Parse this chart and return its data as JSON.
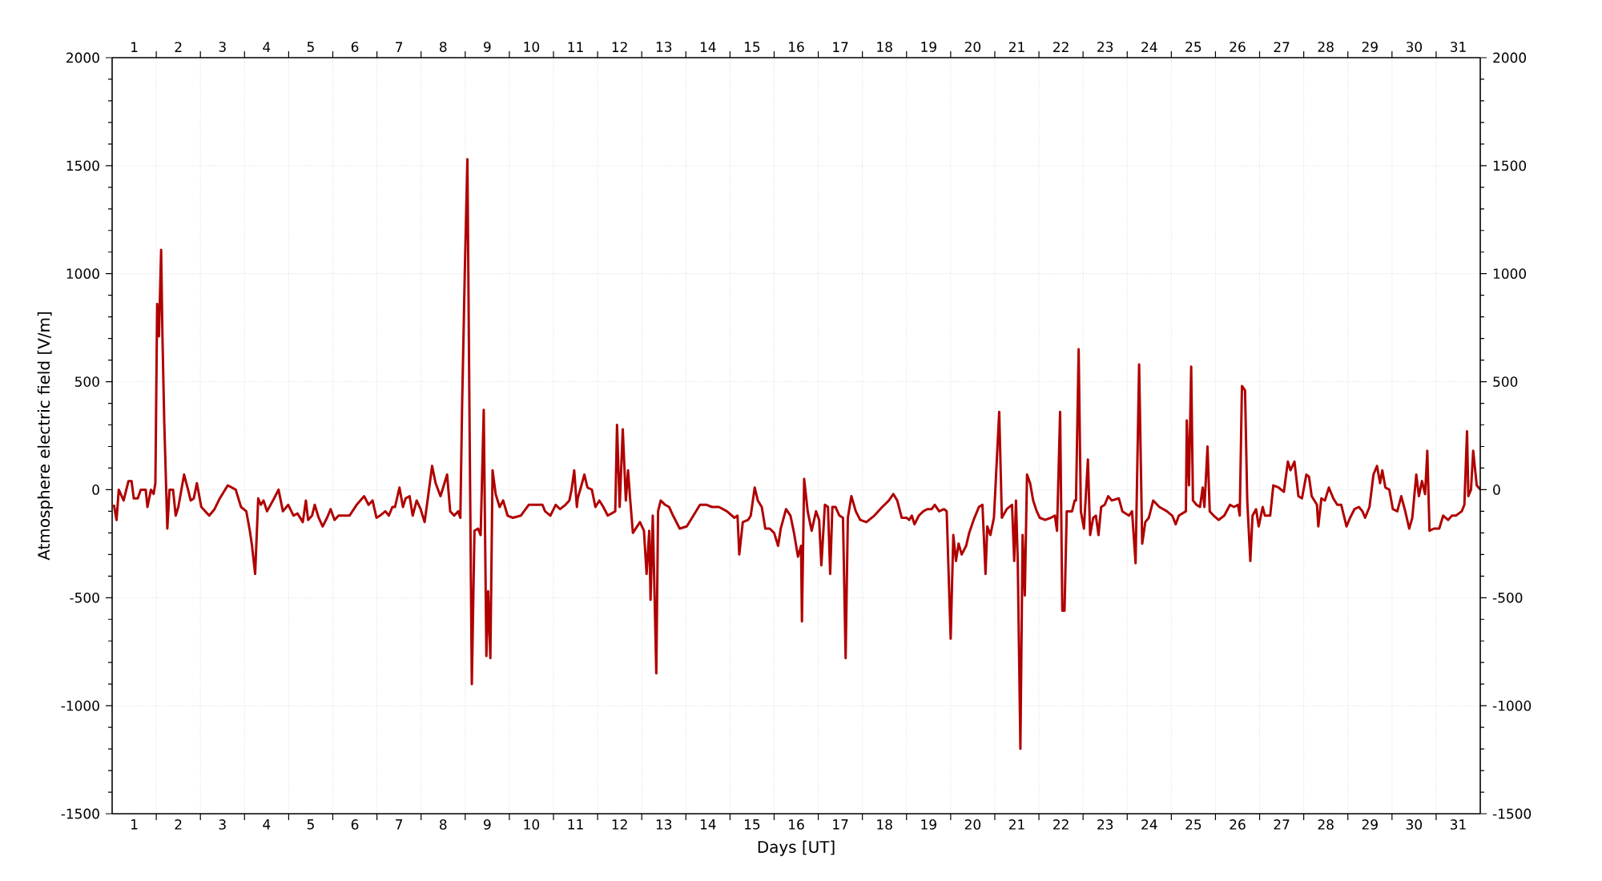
{
  "chart_data": {
    "type": "line",
    "xlabel": "Days [UT]",
    "ylabel": "Atmosphere electric field [V/m]",
    "xlim": [
      1,
      32
    ],
    "xticks": [
      {
        "value": 2,
        "label": null
      },
      {
        "value": 3,
        "label": null
      },
      {
        "value": 4,
        "label": null
      },
      {
        "value": 5,
        "label": null
      },
      {
        "value": 6,
        "label": null
      },
      {
        "value": 7,
        "label": null
      },
      {
        "value": 8,
        "label": null
      },
      {
        "value": 9,
        "label": null
      },
      {
        "value": 10,
        "label": null
      },
      {
        "value": 11,
        "label": null
      },
      {
        "value": 12,
        "label": null
      },
      {
        "value": 13,
        "label": null
      },
      {
        "value": 14,
        "label": null
      },
      {
        "value": 15,
        "label": null
      },
      {
        "value": 16,
        "label": null
      },
      {
        "value": 17,
        "label": null
      },
      {
        "value": 18,
        "label": null
      },
      {
        "value": 19,
        "label": null
      },
      {
        "value": 20,
        "label": null
      },
      {
        "value": 21,
        "label": null
      },
      {
        "value": 22,
        "label": null
      },
      {
        "value": 23,
        "label": null
      },
      {
        "value": 24,
        "label": null
      },
      {
        "value": 25,
        "label": null
      },
      {
        "value": 26,
        "label": null
      },
      {
        "value": 27,
        "label": null
      },
      {
        "value": 28,
        "label": null
      },
      {
        "value": 29,
        "label": null
      },
      {
        "value": 30,
        "label": null
      },
      {
        "value": 31,
        "label": null
      },
      {
        "value": 1.5,
        "label": "1"
      },
      {
        "value": 2.5,
        "label": "2"
      },
      {
        "value": 3.5,
        "label": "3"
      },
      {
        "value": 4.5,
        "label": "4"
      },
      {
        "value": 5.5,
        "label": "5"
      },
      {
        "value": 6.5,
        "label": "6"
      },
      {
        "value": 7.5,
        "label": "7"
      },
      {
        "value": 8.5,
        "label": "8"
      },
      {
        "value": 9.5,
        "label": "9"
      },
      {
        "value": 10.5,
        "label": "10"
      },
      {
        "value": 11.5,
        "label": "11"
      },
      {
        "value": 12.5,
        "label": "12"
      },
      {
        "value": 13.5,
        "label": "13"
      },
      {
        "value": 14.5,
        "label": "14"
      },
      {
        "value": 15.5,
        "label": "15"
      },
      {
        "value": 16.5,
        "label": "16"
      },
      {
        "value": 17.5,
        "label": "17"
      },
      {
        "value": 18.5,
        "label": "18"
      },
      {
        "value": 19.5,
        "label": "19"
      },
      {
        "value": 20.5,
        "label": "20"
      },
      {
        "value": 21.5,
        "label": "21"
      },
      {
        "value": 22.5,
        "label": "22"
      },
      {
        "value": 23.5,
        "label": "23"
      },
      {
        "value": 24.5,
        "label": "24"
      },
      {
        "value": 25.5,
        "label": "25"
      },
      {
        "value": 26.5,
        "label": "26"
      },
      {
        "value": 27.5,
        "label": "27"
      },
      {
        "value": 28.5,
        "label": "28"
      },
      {
        "value": 29.5,
        "label": "29"
      },
      {
        "value": 30.5,
        "label": "30"
      },
      {
        "value": 31.5,
        "label": "31"
      }
    ],
    "x2lim": [
      1,
      32
    ],
    "x2ticks": [
      {
        "value": 2,
        "label": null
      },
      {
        "value": 3,
        "label": null
      },
      {
        "value": 4,
        "label": null
      },
      {
        "value": 5,
        "label": null
      },
      {
        "value": 6,
        "label": null
      },
      {
        "value": 7,
        "label": null
      },
      {
        "value": 8,
        "label": null
      },
      {
        "value": 9,
        "label": null
      },
      {
        "value": 10,
        "label": null
      },
      {
        "value": 11,
        "label": null
      },
      {
        "value": 12,
        "label": null
      },
      {
        "value": 13,
        "label": null
      },
      {
        "value": 14,
        "label": null
      },
      {
        "value": 15,
        "label": null
      },
      {
        "value": 16,
        "label": null
      },
      {
        "value": 17,
        "label": null
      },
      {
        "value": 18,
        "label": null
      },
      {
        "value": 19,
        "label": null
      },
      {
        "value": 20,
        "label": null
      },
      {
        "value": 21,
        "label": null
      },
      {
        "value": 22,
        "label": null
      },
      {
        "value": 23,
        "label": null
      },
      {
        "value": 24,
        "label": null
      },
      {
        "value": 25,
        "label": null
      },
      {
        "value": 26,
        "label": null
      },
      {
        "value": 27,
        "label": null
      },
      {
        "value": 28,
        "label": null
      },
      {
        "value": 29,
        "label": null
      },
      {
        "value": 30,
        "label": null
      },
      {
        "value": 31,
        "label": null
      },
      {
        "value": 1.5,
        "label": "1"
      },
      {
        "value": 2.5,
        "label": "2"
      },
      {
        "value": 3.5,
        "label": "3"
      },
      {
        "value": 4.5,
        "label": "4"
      },
      {
        "value": 5.5,
        "label": "5"
      },
      {
        "value": 6.5,
        "label": "6"
      },
      {
        "value": 7.5,
        "label": "7"
      },
      {
        "value": 8.5,
        "label": "8"
      },
      {
        "value": 9.5,
        "label": "9"
      },
      {
        "value": 10.5,
        "label": "10"
      },
      {
        "value": 11.5,
        "label": "11"
      },
      {
        "value": 12.5,
        "label": "12"
      },
      {
        "value": 13.5,
        "label": "13"
      },
      {
        "value": 14.5,
        "label": "14"
      },
      {
        "value": 15.5,
        "label": "15"
      },
      {
        "value": 16.5,
        "label": "16"
      },
      {
        "value": 17.5,
        "label": "17"
      },
      {
        "value": 18.5,
        "label": "18"
      },
      {
        "value": 19.5,
        "label": "19"
      },
      {
        "value": 20.5,
        "label": "20"
      },
      {
        "value": 21.5,
        "label": "21"
      },
      {
        "value": 22.5,
        "label": "22"
      },
      {
        "value": 23.5,
        "label": "23"
      },
      {
        "value": 24.5,
        "label": "24"
      },
      {
        "value": 25.5,
        "label": "25"
      },
      {
        "value": 26.5,
        "label": "26"
      },
      {
        "value": 27.5,
        "label": "27"
      },
      {
        "value": 28.5,
        "label": "28"
      },
      {
        "value": 29.5,
        "label": "29"
      },
      {
        "value": 30.5,
        "label": "30"
      },
      {
        "value": 31.5,
        "label": "31"
      }
    ],
    "ylim": [
      -1500,
      2000
    ],
    "yticks": [
      -1500,
      -1000,
      -500,
      0,
      500,
      1000,
      1500,
      2000,
      {
        "value": -1400,
        "label": null
      },
      {
        "value": -1300,
        "label": null
      },
      {
        "value": -1200,
        "label": null
      },
      {
        "value": -1100,
        "label": null
      },
      {
        "value": -900,
        "label": null
      },
      {
        "value": -800,
        "label": null
      },
      {
        "value": -700,
        "label": null
      },
      {
        "value": -600,
        "label": null
      },
      {
        "value": -400,
        "label": null
      },
      {
        "value": -300,
        "label": null
      },
      {
        "value": -200,
        "label": null
      },
      {
        "value": -100,
        "label": null
      },
      {
        "value": 100,
        "label": null
      },
      {
        "value": 200,
        "label": null
      },
      {
        "value": 300,
        "label": null
      },
      {
        "value": 400,
        "label": null
      },
      {
        "value": 600,
        "label": null
      },
      {
        "value": 700,
        "label": null
      },
      {
        "value": 800,
        "label": null
      },
      {
        "value": 900,
        "label": null
      },
      {
        "value": 1100,
        "label": null
      },
      {
        "value": 1200,
        "label": null
      },
      {
        "value": 1300,
        "label": null
      },
      {
        "value": 1400,
        "label": null
      },
      {
        "value": 1600,
        "label": null
      },
      {
        "value": 1700,
        "label": null
      },
      {
        "value": 1800,
        "label": null
      },
      {
        "value": 1900,
        "label": null
      }
    ],
    "y2lim": [
      -1500,
      2000
    ],
    "y2ticks": [
      -1500,
      -1000,
      -500,
      0,
      500,
      1000,
      1500,
      2000,
      {
        "value": -1400,
        "label": null
      },
      {
        "value": -1300,
        "label": null
      },
      {
        "value": -1200,
        "label": null
      },
      {
        "value": -1100,
        "label": null
      },
      {
        "value": -900,
        "label": null
      },
      {
        "value": -800,
        "label": null
      },
      {
        "value": -700,
        "label": null
      },
      {
        "value": -600,
        "label": null
      },
      {
        "value": -400,
        "label": null
      },
      {
        "value": -300,
        "label": null
      },
      {
        "value": -200,
        "label": null
      },
      {
        "value": -100,
        "label": null
      },
      {
        "value": 100,
        "label": null
      },
      {
        "value": 200,
        "label": null
      },
      {
        "value": 300,
        "label": null
      },
      {
        "value": 400,
        "label": null
      },
      {
        "value": 600,
        "label": null
      },
      {
        "value": 700,
        "label": null
      },
      {
        "value": 800,
        "label": null
      },
      {
        "value": 900,
        "label": null
      },
      {
        "value": 1100,
        "label": null
      },
      {
        "value": 1200,
        "label": null
      },
      {
        "value": 1300,
        "label": null
      },
      {
        "value": 1400,
        "label": null
      },
      {
        "value": 1600,
        "label": null
      },
      {
        "value": 1700,
        "label": null
      },
      {
        "value": 1800,
        "label": null
      },
      {
        "value": 1900,
        "label": null
      }
    ],
    "grid": true,
    "x": [
      1.04,
      1.1,
      1.15,
      1.26,
      1.37,
      1.44,
      1.49,
      1.58,
      1.65,
      1.76,
      1.8,
      1.88,
      1.94,
      1.98,
      2.02,
      2.06,
      2.11,
      2.14,
      2.18,
      2.25,
      2.3,
      2.38,
      2.44,
      2.5,
      2.63,
      2.72,
      2.78,
      2.85,
      2.92,
      3.02,
      3.2,
      3.32,
      3.44,
      3.62,
      3.8,
      3.92,
      4.04,
      4.12,
      4.17,
      4.24,
      4.31,
      4.37,
      4.43,
      4.51,
      4.67,
      4.77,
      4.87,
      4.99,
      5.11,
      5.2,
      5.32,
      5.39,
      5.44,
      5.53,
      5.59,
      5.68,
      5.77,
      5.87,
      5.95,
      6.04,
      6.13,
      6.25,
      6.38,
      6.54,
      6.71,
      6.81,
      6.9,
      6.99,
      7.07,
      7.19,
      7.27,
      7.35,
      7.41,
      7.51,
      7.59,
      7.65,
      7.74,
      7.81,
      7.9,
      7.99,
      8.08,
      8.16,
      8.25,
      8.33,
      8.44,
      8.5,
      8.59,
      8.66,
      8.75,
      8.84,
      8.89,
      8.93,
      8.99,
      9.05,
      9.1,
      9.15,
      9.21,
      9.29,
      9.35,
      9.42,
      9.48,
      9.52,
      9.57,
      9.62,
      9.69,
      9.78,
      9.86,
      9.96,
      10.08,
      10.26,
      10.44,
      10.59,
      10.75,
      10.81,
      10.93,
      11.05,
      11.15,
      11.27,
      11.36,
      11.41,
      11.47,
      11.53,
      11.55,
      11.62,
      11.7,
      11.77,
      11.87,
      11.95,
      12.04,
      12.13,
      12.23,
      12.4,
      12.44,
      12.5,
      12.57,
      12.64,
      12.69,
      12.74,
      12.8,
      12.96,
      13.05,
      13.11,
      13.17,
      13.2,
      13.25,
      13.33,
      13.37,
      13.43,
      13.53,
      13.62,
      13.71,
      13.86,
      14.02,
      14.14,
      14.32,
      14.47,
      14.59,
      14.75,
      14.93,
      15.1,
      15.17,
      15.21,
      15.29,
      15.41,
      15.47,
      15.56,
      15.63,
      15.72,
      15.8,
      15.9,
      16.0,
      16.09,
      16.15,
      16.27,
      16.37,
      16.45,
      16.54,
      16.61,
      16.63,
      16.68,
      16.76,
      16.85,
      16.95,
      17.02,
      17.07,
      17.15,
      17.22,
      17.27,
      17.32,
      17.39,
      17.48,
      17.56,
      17.62,
      17.67,
      17.75,
      17.85,
      17.95,
      18.09,
      18.27,
      18.45,
      18.6,
      18.7,
      18.79,
      18.89,
      19.0,
      19.06,
      19.12,
      19.18,
      19.28,
      19.38,
      19.47,
      19.57,
      19.64,
      19.74,
      19.85,
      19.91,
      20.0,
      20.06,
      20.12,
      20.18,
      20.25,
      20.35,
      20.42,
      20.52,
      20.64,
      20.72,
      20.79,
      20.83,
      20.9,
      20.98,
      21.02,
      21.1,
      21.16,
      21.27,
      21.39,
      21.44,
      21.48,
      21.52,
      21.58,
      21.63,
      21.68,
      21.73,
      21.8,
      21.87,
      21.95,
      22.02,
      22.14,
      22.27,
      22.36,
      22.41,
      22.48,
      22.53,
      22.58,
      22.63,
      22.75,
      22.81,
      22.84,
      22.9,
      22.95,
      23.02,
      23.11,
      23.16,
      23.23,
      23.29,
      23.35,
      23.41,
      23.49,
      23.57,
      23.65,
      23.81,
      23.89,
      24.04,
      24.11,
      24.19,
      24.27,
      24.34,
      24.41,
      24.49,
      24.59,
      24.73,
      24.9,
      25.02,
      25.1,
      25.17,
      25.33,
      25.35,
      25.4,
      25.45,
      25.49,
      25.57,
      25.65,
      25.71,
      25.75,
      25.82,
      25.87,
      25.96,
      26.07,
      26.2,
      26.33,
      26.42,
      26.51,
      26.55,
      26.6,
      26.67,
      26.72,
      26.79,
      26.84,
      26.92,
      26.98,
      27.07,
      27.12,
      27.24,
      27.31,
      27.43,
      27.55,
      27.64,
      27.7,
      27.79,
      27.88,
      27.96,
      28.06,
      28.12,
      28.18,
      28.3,
      28.33,
      28.4,
      28.48,
      28.57,
      28.67,
      28.76,
      28.85,
      28.97,
      29.05,
      29.15,
      29.25,
      29.33,
      29.39,
      29.49,
      29.58,
      29.66,
      29.73,
      29.78,
      29.85,
      29.94,
      30.02,
      30.12,
      30.21,
      30.3,
      30.39,
      30.46,
      30.55,
      30.61,
      30.68,
      30.75,
      30.8,
      30.85,
      30.95,
      31.07,
      31.16,
      31.27,
      31.36,
      31.45,
      31.58,
      31.64,
      31.7,
      31.73,
      31.79,
      31.84,
      31.92,
      32.0
    ],
    "series": [
      {
        "color": "#b00000",
        "values": [
          -70,
          -140,
          0,
          -50,
          40,
          40,
          -40,
          -40,
          0,
          0,
          -80,
          0,
          -20,
          30,
          860,
          710,
          1110,
          710,
          320,
          -180,
          0,
          0,
          -120,
          -80,
          70,
          0,
          -50,
          -40,
          30,
          -80,
          -120,
          -90,
          -40,
          20,
          0,
          -80,
          -100,
          -190,
          -260,
          -390,
          -40,
          -70,
          -50,
          -100,
          -40,
          0,
          -100,
          -70,
          -120,
          -110,
          -150,
          -50,
          -140,
          -120,
          -70,
          -130,
          -170,
          -130,
          -90,
          -140,
          -120,
          -120,
          -120,
          -70,
          -30,
          -70,
          -50,
          -130,
          -120,
          -100,
          -120,
          -80,
          -80,
          10,
          -80,
          -40,
          -30,
          -120,
          -50,
          -90,
          -150,
          -30,
          110,
          30,
          -30,
          10,
          70,
          -100,
          -120,
          -100,
          -130,
          390,
          1000,
          1530,
          270,
          -900,
          -190,
          -180,
          -210,
          370,
          -770,
          -470,
          -780,
          90,
          -20,
          -80,
          -50,
          -120,
          -130,
          -120,
          -70,
          -70,
          -70,
          -100,
          -120,
          -70,
          -90,
          -70,
          -50,
          0,
          90,
          -80,
          -40,
          10,
          70,
          10,
          0,
          -80,
          -50,
          -80,
          -120,
          -100,
          300,
          -80,
          280,
          -50,
          90,
          -50,
          -200,
          -150,
          -190,
          -390,
          -190,
          -510,
          -120,
          -850,
          -100,
          -50,
          -70,
          -80,
          -120,
          -180,
          -170,
          -130,
          -70,
          -70,
          -80,
          -80,
          -100,
          -130,
          -120,
          -300,
          -150,
          -140,
          -120,
          10,
          -50,
          -80,
          -180,
          -180,
          -200,
          -260,
          -180,
          -90,
          -120,
          -200,
          -310,
          -260,
          -610,
          50,
          -100,
          -190,
          -100,
          -140,
          -350,
          -70,
          -80,
          -390,
          -80,
          -80,
          -120,
          -130,
          -780,
          -130,
          -30,
          -100,
          -140,
          -150,
          -120,
          -80,
          -50,
          -20,
          -50,
          -130,
          -130,
          -140,
          -120,
          -160,
          -120,
          -100,
          -90,
          -90,
          -70,
          -100,
          -90,
          -100,
          -690,
          -210,
          -330,
          -250,
          -300,
          -260,
          -200,
          -140,
          -80,
          -70,
          -390,
          -170,
          -210,
          -130,
          30,
          360,
          -130,
          -90,
          -70,
          -330,
          -50,
          -330,
          -1200,
          -210,
          -490,
          70,
          30,
          -50,
          -100,
          -130,
          -140,
          -130,
          -120,
          -190,
          360,
          -560,
          -560,
          -100,
          -100,
          -50,
          -50,
          650,
          -100,
          -180,
          140,
          -210,
          -130,
          -120,
          -210,
          -80,
          -70,
          -30,
          -50,
          -40,
          -100,
          -120,
          -100,
          -340,
          580,
          -250,
          -150,
          -130,
          -50,
          -80,
          -100,
          -120,
          -160,
          -120,
          -100,
          320,
          20,
          570,
          -50,
          -70,
          -80,
          10,
          -80,
          200,
          -100,
          -120,
          -140,
          -120,
          -70,
          -80,
          -70,
          -120,
          480,
          460,
          -50,
          -330,
          -120,
          -90,
          -170,
          -80,
          -120,
          -120,
          20,
          10,
          -10,
          130,
          90,
          130,
          -30,
          -40,
          70,
          60,
          -30,
          -70,
          -170,
          -40,
          -50,
          10,
          -40,
          -70,
          -70,
          -170,
          -130,
          -90,
          -80,
          -100,
          -130,
          -80,
          70,
          110,
          30,
          90,
          10,
          0,
          -90,
          -100,
          -30,
          -100,
          -180,
          -130,
          70,
          -30,
          40,
          -20,
          180,
          -190,
          -180,
          -180,
          -120,
          -140,
          -120,
          -120,
          -100,
          -70,
          270,
          -30,
          0,
          180,
          20,
          0
        ]
      }
    ]
  }
}
